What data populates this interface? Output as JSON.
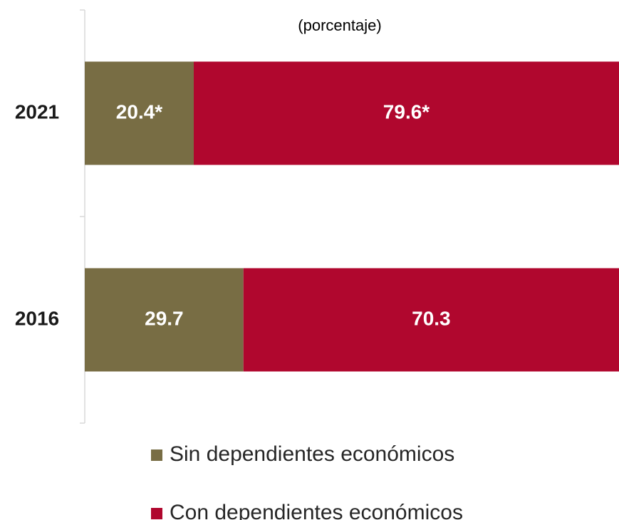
{
  "chart_data": {
    "type": "stacked-bar-horizontal",
    "subtitle": "(porcentaje)",
    "categories": [
      "2021",
      "2016"
    ],
    "series": [
      {
        "name": "Sin dependientes económicos",
        "color": "#786d44",
        "values": [
          20.4,
          29.7
        ],
        "value_labels": [
          "20.4*",
          "29.7"
        ]
      },
      {
        "name": "Con dependientes económicos",
        "color": "#b0072e",
        "values": [
          79.6,
          70.3
        ],
        "value_labels": [
          "79.6*",
          "70.3"
        ]
      }
    ],
    "xlim": [
      0,
      100
    ]
  }
}
